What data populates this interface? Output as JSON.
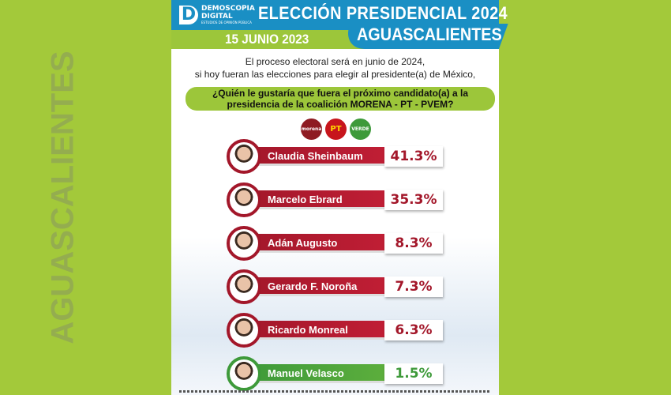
{
  "header": {
    "brand": "DEMOSCOPIA",
    "brand2": "DIGITAL",
    "brand_sub": "ESTUDIOS DE OPINIÓN PÚBLICA",
    "title": "ELECCIÓN PRESIDENCIAL 2024",
    "subtitle": "AGUASCALIENTES",
    "date": "15 JUNIO 2023"
  },
  "intro": {
    "line1": "El proceso electoral será en junio de 2024,",
    "line2": "si hoy fueran las elecciones para elegir al presidente(a) de México,"
  },
  "question": {
    "line1": "¿Quién le gustaría que fuera el próximo candidato(a) a la",
    "line2": "presidencia de la coalición MORENA - PT - PVEM?"
  },
  "parties": [
    "morena",
    "PT",
    "VERDE"
  ],
  "watermark": "AGUASCALIENTES",
  "colors": {
    "red": "#a3172a",
    "green": "#3e9a3a",
    "blue": "#1a8fc4",
    "lime": "#9cc63a"
  },
  "chart_data": {
    "type": "bar",
    "title": "¿Quién le gustaría que fuera el próximo candidato(a) a la presidencia de la coalición MORENA - PT - PVEM?",
    "categories": [
      "Claudia Sheinbaum",
      "Marcelo Ebrard",
      "Adán Augusto",
      "Gerardo F. Noroña",
      "Ricardo Monreal",
      "Manuel Velasco"
    ],
    "values": [
      41.3,
      35.3,
      8.3,
      7.3,
      6.3,
      1.5
    ],
    "labels": [
      "41.3%",
      "35.3%",
      "8.3%",
      "7.3%",
      "6.3%",
      "1.5%"
    ],
    "unit": "%"
  }
}
